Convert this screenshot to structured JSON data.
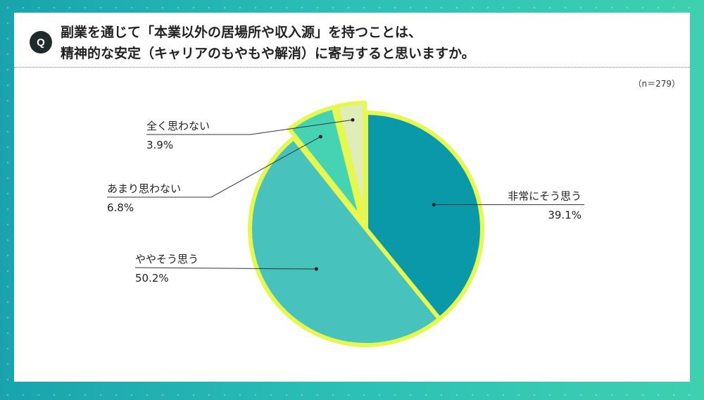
{
  "header": {
    "badge": "Q",
    "question_line1": "副業を通じて「本業以外の居場所や収入源」を持つことは、",
    "question_line2": "精神的な安定（キャリアのもやもや解消）に寄与すると思いますか。"
  },
  "sample_size": "（n＝279）",
  "colors": {
    "background": "#2cc0b6",
    "outline": "#e6f84f",
    "slice1": "#0a99a8",
    "slice2": "#47c2bc",
    "slice3": "#45d3b3",
    "slice4": "#dfeeb9"
  },
  "chart_data": {
    "type": "pie",
    "slices": [
      {
        "label": "非常にそう思う",
        "value": 39.1,
        "display": "39.1%",
        "color": "#0a99a8",
        "exploded": false
      },
      {
        "label": "ややそう思う",
        "value": 50.2,
        "display": "50.2%",
        "color": "#47c2bc",
        "exploded": false
      },
      {
        "label": "あまり思わない",
        "value": 6.8,
        "display": "6.8%",
        "color": "#45d3b3",
        "exploded": true
      },
      {
        "label": "全く思わない",
        "value": 3.9,
        "display": "3.9%",
        "color": "#dfeeb9",
        "exploded": true
      }
    ]
  }
}
